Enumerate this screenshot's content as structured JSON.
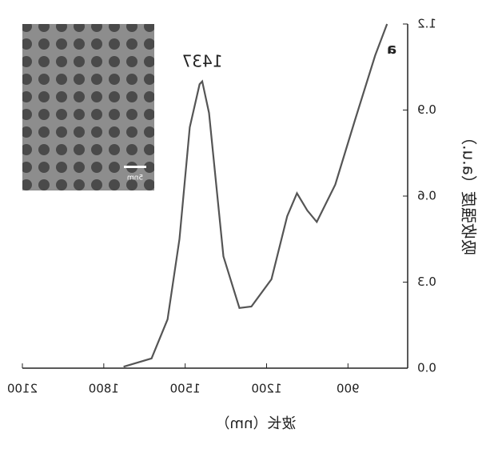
{
  "chart_data": {
    "type": "line",
    "panel_label": "a",
    "x_label": "波长（nm）",
    "y_label": "吸收强度（a.u.）",
    "annotation": "1437",
    "inset_label": "5nm",
    "xlim": [
      2100,
      680
    ],
    "xticks": [
      2100,
      1800,
      1500,
      1200,
      900
    ],
    "ylim": [
      0,
      1.2
    ],
    "yticks": [
      {
        "value": 0,
        "label": "0.0"
      },
      0.3,
      0.6,
      0.9,
      1.2
    ],
    "mirrored": true,
    "series": [
      {
        "color": "#555555",
        "x": [
          1727,
          1624,
          1565,
          1521,
          1483,
          1447,
          1437,
          1412,
          1359,
          1300,
          1256,
          1182,
          1124,
          1088,
          1050,
          1015,
          947,
          874,
          800,
          756
        ],
        "values": [
          0.005,
          0.034,
          0.17,
          0.45,
          0.84,
          0.99,
          1.0,
          0.89,
          0.39,
          0.21,
          0.215,
          0.31,
          0.53,
          0.61,
          0.55,
          0.51,
          0.64,
          0.865,
          1.09,
          1.2
        ]
      }
    ]
  }
}
